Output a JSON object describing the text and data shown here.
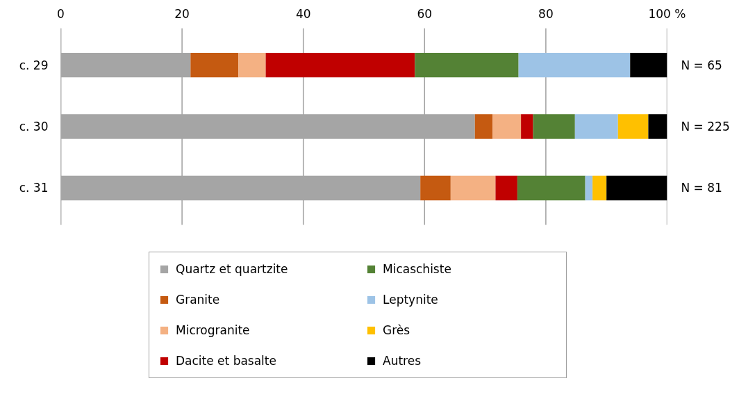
{
  "chart_data": {
    "type": "bar",
    "orientation": "horizontal",
    "stacked": true,
    "categories": [
      "c. 29",
      "c. 30",
      "c. 31"
    ],
    "series": [
      {
        "name": "Quartz et quartzite",
        "color": "#a5a5a5",
        "values": [
          21.4,
          68.3,
          59.3
        ]
      },
      {
        "name": "Granite",
        "color": "#c55a11",
        "values": [
          7.9,
          2.9,
          5.0
        ]
      },
      {
        "name": "Microgranite",
        "color": "#f4b183",
        "values": [
          4.5,
          4.7,
          7.4
        ]
      },
      {
        "name": "Dacite et basalte",
        "color": "#c00000",
        "values": [
          24.6,
          2.0,
          3.6
        ]
      },
      {
        "name": "Micaschiste",
        "color": "#548235",
        "values": [
          17.1,
          6.9,
          11.2
        ]
      },
      {
        "name": "Leptynite",
        "color": "#9dc3e6",
        "values": [
          18.4,
          7.1,
          1.2
        ]
      },
      {
        "name": "Grès",
        "color": "#ffc000",
        "values": [
          0,
          5.0,
          2.3
        ]
      },
      {
        "name": "Autres",
        "color": "#000000",
        "values": [
          6.1,
          3.1,
          10.0
        ]
      }
    ],
    "xlim": [
      0,
      100
    ],
    "xticks": [
      0,
      20,
      40,
      60,
      80,
      {
        "value": 100,
        "label": "100 %"
      }
    ],
    "grid": "x",
    "legend": "bottom",
    "annotations": [
      "N = 65",
      "N = 225",
      "N = 81"
    ]
  }
}
